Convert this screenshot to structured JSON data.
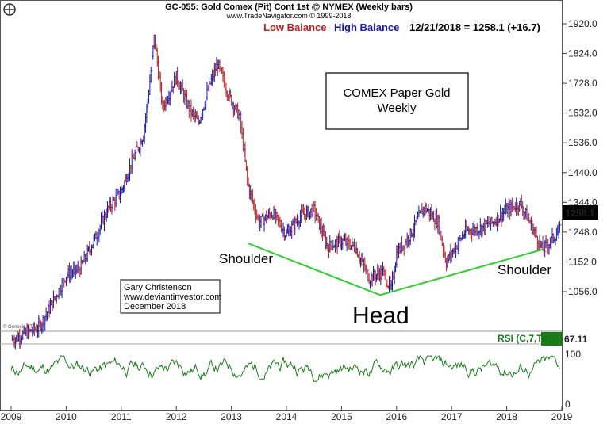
{
  "header": {
    "title": "GC-055:  Gold Comex (Pit) Cont 1st @ NYMEX  (Weekly bars)",
    "subtitle": "www.TradeNavigator.com © 1999-2018",
    "low_balance": "Low Balance",
    "high_balance": "High Balance",
    "quote": "12/21/2018 = 1258.1 (+16.7)",
    "low_color": "#b22222",
    "high_color": "#1a1aa6"
  },
  "watermark": "© Genesis FT",
  "annotation_box": {
    "line1": "COMEX Paper Gold",
    "line2": "Weekly"
  },
  "credit": {
    "line1": "Gary Christenson",
    "line2": "www.deviantinvestor.com",
    "line3": "December 2018"
  },
  "rsi": {
    "label": "RSI (C,7,T)",
    "value": "67.11",
    "color": "#1a7a1a",
    "top_tick": "100",
    "bottom_tick": "0"
  },
  "chart_data": {
    "type": "line",
    "price_axis": {
      "ticks": [
        "1920.0",
        "1824.0",
        "1728.0",
        "1632.0",
        "1536.0",
        "1440.0",
        "1344.0",
        "1248.0",
        "1152.0",
        "1056.0"
      ],
      "range": [
        955,
        1920
      ],
      "last_label": "1258.1"
    },
    "x_axis": {
      "ticks": [
        "2009",
        "2010",
        "2011",
        "2012",
        "2013",
        "2014",
        "2015",
        "2016",
        "2017",
        "2018",
        "2019"
      ],
      "range": [
        2009.0,
        2019.0
      ]
    },
    "series": [
      {
        "values_x": [
          2009.0,
          2009.25,
          2009.5,
          2009.75,
          2010.0,
          2010.25,
          2010.5,
          2010.75,
          2011.0,
          2011.2,
          2011.4,
          2011.5,
          2011.6,
          2011.75,
          2012.0,
          2012.25,
          2012.4,
          2012.6,
          2012.75,
          2012.95,
          2013.15,
          2013.3,
          2013.5,
          2013.75,
          2014.0,
          2014.25,
          2014.5,
          2014.75,
          2015.0,
          2015.25,
          2015.5,
          2015.75,
          2015.9,
          2016.0,
          2016.25,
          2016.5,
          2016.75,
          2016.9,
          2017.0,
          2017.25,
          2017.5,
          2017.75,
          2018.0,
          2018.25,
          2018.5,
          2018.65,
          2018.8,
          2018.98
        ],
        "values_y": [
          900,
          920,
          940,
          1020,
          1110,
          1130,
          1220,
          1320,
          1380,
          1480,
          1560,
          1700,
          1880,
          1650,
          1750,
          1640,
          1600,
          1720,
          1790,
          1690,
          1620,
          1400,
          1280,
          1310,
          1240,
          1300,
          1320,
          1200,
          1220,
          1200,
          1100,
          1120,
          1060,
          1180,
          1240,
          1330,
          1280,
          1150,
          1180,
          1250,
          1260,
          1280,
          1320,
          1340,
          1250,
          1190,
          1220,
          1258
        ]
      }
    ],
    "neckline": {
      "x": [
        2013.3,
        2015.7,
        2018.65
      ],
      "y": [
        1212,
        1045,
        1192
      ],
      "color": "#33cc33"
    },
    "labels": {
      "shoulder_left": "Shoulder",
      "head": "Head",
      "shoulder_right": "Shoulder"
    }
  }
}
